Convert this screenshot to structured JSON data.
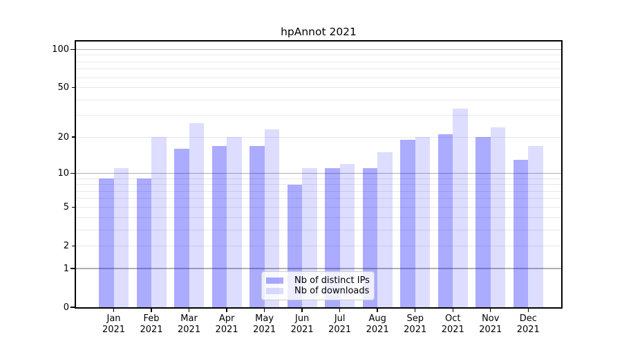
{
  "chart_data": {
    "type": "bar",
    "title": "hpAnnot 2021",
    "categories": [
      "Jan 2021",
      "Feb 2021",
      "Mar 2021",
      "Apr 2021",
      "May 2021",
      "Jun 2021",
      "Jul 2021",
      "Aug 2021",
      "Sep 2021",
      "Oct 2021",
      "Nov 2021",
      "Dec 2021"
    ],
    "series": [
      {
        "id": "distinct-ips",
        "name": "Nb of distinct IPs",
        "color": "rgba(0,0,255,0.33)",
        "values": [
          9,
          9,
          16,
          17,
          17,
          8,
          11,
          11,
          19,
          21,
          20,
          13
        ]
      },
      {
        "id": "downloads",
        "name": "Nb of downloads",
        "color": "rgba(0,0,255,0.135)",
        "values": [
          11,
          20,
          26,
          20,
          23,
          11,
          12,
          15,
          20,
          34,
          24,
          17
        ]
      }
    ],
    "yscale": "log10(1+x)",
    "ylim": [
      0,
      115.3
    ],
    "yticks": [
      {
        "v": 0,
        "label": "0",
        "major": true
      },
      {
        "v": 1,
        "label": "1",
        "major": true
      },
      {
        "v": 2,
        "label": "2",
        "major": false
      },
      {
        "v": 5,
        "label": "5",
        "major": false
      },
      {
        "v": 10,
        "label": "10",
        "major": true
      },
      {
        "v": 20,
        "label": "20",
        "major": false
      },
      {
        "v": 50,
        "label": "50",
        "major": false
      },
      {
        "v": 100,
        "label": "100",
        "major": true
      }
    ],
    "minor_gridlines": [
      3,
      4,
      6,
      7,
      8,
      9,
      30,
      40,
      60,
      70,
      80,
      90
    ],
    "grid": true,
    "legend_position": "lower center",
    "colors": {
      "major_grid": "#b0b0b0",
      "minor_grid": "#e8e8e8",
      "spine": "#000000",
      "text": "#000000",
      "background": "#ffffff"
    }
  }
}
